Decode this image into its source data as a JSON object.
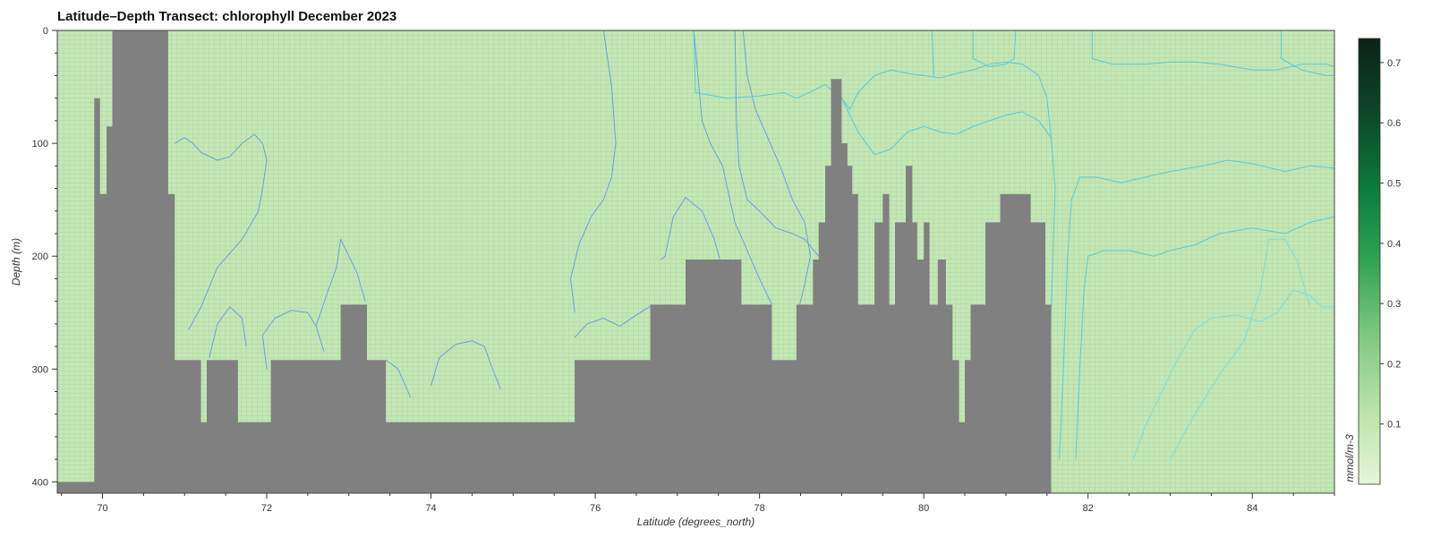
{
  "chart_data": {
    "type": "heatmap",
    "title": "Latitude–Depth Transect: chlorophyll December 2023",
    "xlabel": "Latitude (degrees_north)",
    "ylabel": "Depth (m)",
    "colorbar_label": "mmol/m-3",
    "xlim": [
      69.45,
      85.0
    ],
    "ylim": [
      410,
      0
    ],
    "x_ticks": [
      70,
      72,
      74,
      76,
      78,
      80,
      82,
      84
    ],
    "y_ticks": [
      0,
      100,
      200,
      300,
      400
    ],
    "colorbar_range": [
      0,
      0.74
    ],
    "colorbar_ticks": [
      0.1,
      0.2,
      0.3,
      0.4,
      0.5,
      0.6,
      0.7
    ],
    "colorbar_colors": [
      "#e6f6d8",
      "#b9e3a8",
      "#7fc97f",
      "#31a354",
      "#0b7a3b",
      "#0c4726",
      "#0b2218"
    ],
    "field_color": "#c3e8b5",
    "land_color": "#808080",
    "land_mask": [
      [
        69.45,
        400
      ],
      [
        69.9,
        400
      ],
      [
        69.9,
        60
      ],
      [
        69.97,
        60
      ],
      [
        69.97,
        145
      ],
      [
        70.05,
        145
      ],
      [
        70.05,
        85
      ],
      [
        70.12,
        85
      ],
      [
        70.12,
        0
      ],
      [
        70.8,
        0
      ],
      [
        70.8,
        145
      ],
      [
        70.88,
        145
      ],
      [
        70.88,
        292
      ],
      [
        71.2,
        292
      ],
      [
        71.2,
        347
      ],
      [
        71.27,
        347
      ],
      [
        71.27,
        292
      ],
      [
        71.65,
        292
      ],
      [
        71.65,
        347
      ],
      [
        72.05,
        347
      ],
      [
        72.05,
        292
      ],
      [
        72.9,
        292
      ],
      [
        72.9,
        243
      ],
      [
        73.22,
        243
      ],
      [
        73.22,
        292
      ],
      [
        73.45,
        292
      ],
      [
        73.45,
        347
      ],
      [
        75.75,
        347
      ],
      [
        75.75,
        292
      ],
      [
        76.67,
        292
      ],
      [
        76.67,
        243
      ],
      [
        77.1,
        243
      ],
      [
        77.1,
        203
      ],
      [
        77.78,
        203
      ],
      [
        77.78,
        243
      ],
      [
        78.15,
        243
      ],
      [
        78.15,
        292
      ],
      [
        78.45,
        292
      ],
      [
        78.45,
        243
      ],
      [
        78.65,
        243
      ],
      [
        78.65,
        203
      ],
      [
        78.72,
        203
      ],
      [
        78.72,
        170
      ],
      [
        78.8,
        170
      ],
      [
        78.8,
        120
      ],
      [
        78.87,
        120
      ],
      [
        78.87,
        43
      ],
      [
        79.0,
        43
      ],
      [
        79.0,
        100
      ],
      [
        79.07,
        100
      ],
      [
        79.07,
        120
      ],
      [
        79.13,
        120
      ],
      [
        79.13,
        145
      ],
      [
        79.2,
        145
      ],
      [
        79.2,
        243
      ],
      [
        79.4,
        243
      ],
      [
        79.4,
        170
      ],
      [
        79.5,
        170
      ],
      [
        79.5,
        145
      ],
      [
        79.58,
        145
      ],
      [
        79.58,
        243
      ],
      [
        79.65,
        243
      ],
      [
        79.65,
        170
      ],
      [
        79.78,
        170
      ],
      [
        79.78,
        120
      ],
      [
        79.86,
        120
      ],
      [
        79.86,
        170
      ],
      [
        79.92,
        170
      ],
      [
        79.92,
        203
      ],
      [
        80.0,
        203
      ],
      [
        80.0,
        170
      ],
      [
        80.07,
        170
      ],
      [
        80.07,
        243
      ],
      [
        80.17,
        243
      ],
      [
        80.17,
        203
      ],
      [
        80.27,
        203
      ],
      [
        80.27,
        243
      ],
      [
        80.35,
        243
      ],
      [
        80.35,
        292
      ],
      [
        80.43,
        292
      ],
      [
        80.43,
        347
      ],
      [
        80.5,
        347
      ],
      [
        80.5,
        292
      ],
      [
        80.57,
        292
      ],
      [
        80.57,
        243
      ],
      [
        80.75,
        243
      ],
      [
        80.75,
        170
      ],
      [
        80.93,
        170
      ],
      [
        80.93,
        145
      ],
      [
        81.3,
        145
      ],
      [
        81.3,
        170
      ],
      [
        81.48,
        170
      ],
      [
        81.48,
        243
      ],
      [
        81.55,
        243
      ],
      [
        81.55,
        410
      ],
      [
        69.45,
        410
      ]
    ],
    "contours": [
      {
        "color": "#6a9ee0",
        "points": [
          [
            70.88,
            100
          ],
          [
            71.0,
            95
          ],
          [
            71.1,
            100
          ],
          [
            71.2,
            108
          ],
          [
            71.4,
            115
          ],
          [
            71.55,
            112
          ],
          [
            71.7,
            100
          ],
          [
            71.85,
            92
          ],
          [
            71.95,
            100
          ],
          [
            72.0,
            115
          ],
          [
            71.95,
            140
          ],
          [
            71.9,
            160
          ],
          [
            71.7,
            185
          ],
          [
            71.4,
            210
          ],
          [
            71.2,
            245
          ],
          [
            71.05,
            265
          ]
        ]
      },
      {
        "color": "#6a9ee0",
        "points": [
          [
            71.3,
            290
          ],
          [
            71.4,
            260
          ],
          [
            71.55,
            245
          ],
          [
            71.7,
            255
          ],
          [
            71.75,
            280
          ]
        ]
      },
      {
        "color": "#6a9ee0",
        "points": [
          [
            72.0,
            300
          ],
          [
            71.95,
            270
          ],
          [
            72.1,
            255
          ],
          [
            72.3,
            248
          ],
          [
            72.5,
            250
          ],
          [
            72.6,
            262
          ],
          [
            72.7,
            285
          ]
        ]
      },
      {
        "color": "#6a9ee0",
        "points": [
          [
            72.6,
            262
          ],
          [
            72.75,
            230
          ],
          [
            72.85,
            210
          ],
          [
            72.9,
            185
          ],
          [
            73.0,
            200
          ],
          [
            73.1,
            215
          ],
          [
            73.2,
            240
          ]
        ]
      },
      {
        "color": "#6a9ee0",
        "points": [
          [
            73.45,
            292
          ],
          [
            73.6,
            300
          ],
          [
            73.75,
            325
          ]
        ]
      },
      {
        "color": "#6a9ee0",
        "points": [
          [
            74.0,
            315
          ],
          [
            74.1,
            290
          ],
          [
            74.3,
            278
          ],
          [
            74.5,
            275
          ],
          [
            74.65,
            280
          ],
          [
            74.75,
            300
          ],
          [
            74.85,
            318
          ]
        ]
      },
      {
        "color": "#6a9ee0",
        "points": [
          [
            75.75,
            272
          ],
          [
            75.9,
            260
          ],
          [
            76.1,
            255
          ],
          [
            76.3,
            262
          ],
          [
            76.5,
            252
          ],
          [
            76.7,
            243
          ]
        ]
      },
      {
        "color": "#6a9ee0",
        "points": [
          [
            75.75,
            250
          ],
          [
            75.7,
            220
          ],
          [
            75.8,
            190
          ],
          [
            75.95,
            165
          ],
          [
            76.1,
            150
          ],
          [
            76.2,
            130
          ],
          [
            76.25,
            100
          ],
          [
            76.2,
            50
          ],
          [
            76.1,
            0
          ]
        ]
      },
      {
        "color": "#6a9ee0",
        "points": [
          [
            77.78,
            243
          ],
          [
            77.6,
            225
          ],
          [
            77.45,
            185
          ],
          [
            77.3,
            160
          ],
          [
            77.1,
            148
          ],
          [
            76.95,
            165
          ],
          [
            76.85,
            200
          ],
          [
            76.8,
            203
          ]
        ]
      },
      {
        "color": "#6a9ee0",
        "points": [
          [
            78.15,
            243
          ],
          [
            78.0,
            220
          ],
          [
            77.85,
            195
          ],
          [
            77.7,
            170
          ],
          [
            77.55,
            120
          ],
          [
            77.4,
            100
          ],
          [
            77.3,
            80
          ],
          [
            77.25,
            40
          ],
          [
            77.2,
            0
          ]
        ]
      },
      {
        "color": "#6a9ee0",
        "points": [
          [
            78.45,
            255
          ],
          [
            78.55,
            225
          ],
          [
            78.62,
            200
          ],
          [
            78.55,
            170
          ],
          [
            78.4,
            150
          ],
          [
            78.25,
            120
          ],
          [
            78.1,
            95
          ],
          [
            77.95,
            70
          ],
          [
            77.85,
            40
          ],
          [
            77.8,
            0
          ]
        ]
      },
      {
        "color": "#6a9ee0",
        "points": [
          [
            78.72,
            200
          ],
          [
            78.55,
            185
          ],
          [
            78.4,
            180
          ],
          [
            78.2,
            175
          ],
          [
            78.0,
            160
          ],
          [
            77.85,
            150
          ],
          [
            77.75,
            120
          ],
          [
            77.72,
            80
          ],
          [
            77.7,
            0
          ]
        ]
      },
      {
        "color": "#5cc8d8",
        "points": [
          [
            78.45,
            60
          ],
          [
            78.6,
            55
          ],
          [
            78.8,
            48
          ],
          [
            79.0,
            60
          ],
          [
            79.2,
            90
          ],
          [
            79.4,
            110
          ],
          [
            79.6,
            105
          ],
          [
            79.8,
            90
          ],
          [
            80.0,
            85
          ],
          [
            80.2,
            90
          ],
          [
            80.4,
            92
          ],
          [
            80.6,
            85
          ],
          [
            80.8,
            80
          ],
          [
            81.0,
            75
          ],
          [
            81.2,
            72
          ],
          [
            81.4,
            80
          ],
          [
            81.55,
            95
          ]
        ]
      },
      {
        "color": "#5cc8d8",
        "points": [
          [
            79.0,
            60
          ],
          [
            79.1,
            70
          ],
          [
            79.2,
            55
          ],
          [
            79.4,
            40
          ],
          [
            79.6,
            35
          ],
          [
            79.8,
            38
          ],
          [
            80.0,
            40
          ],
          [
            80.2,
            42
          ],
          [
            80.4,
            38
          ],
          [
            80.6,
            35
          ],
          [
            80.8,
            30
          ],
          [
            81.0,
            28
          ],
          [
            81.2,
            30
          ],
          [
            81.4,
            40
          ],
          [
            81.5,
            60
          ],
          [
            81.55,
            95
          ],
          [
            81.6,
            140
          ],
          [
            81.55,
            250
          ],
          [
            81.5,
            380
          ]
        ]
      },
      {
        "color": "#5cc8d8",
        "points": [
          [
            81.65,
            380
          ],
          [
            81.7,
            300
          ],
          [
            81.75,
            200
          ],
          [
            81.8,
            150
          ],
          [
            81.9,
            130
          ],
          [
            82.1,
            130
          ],
          [
            82.4,
            135
          ],
          [
            82.7,
            130
          ],
          [
            83.0,
            125
          ],
          [
            83.4,
            120
          ],
          [
            83.7,
            115
          ],
          [
            84.0,
            118
          ],
          [
            84.4,
            125
          ],
          [
            84.7,
            120
          ],
          [
            85.0,
            122
          ]
        ]
      },
      {
        "color": "#5cc8d8",
        "points": [
          [
            81.85,
            380
          ],
          [
            81.9,
            300
          ],
          [
            81.95,
            230
          ],
          [
            82.0,
            200
          ],
          [
            82.2,
            195
          ],
          [
            82.5,
            195
          ],
          [
            82.8,
            200
          ],
          [
            83.0,
            195
          ],
          [
            83.3,
            190
          ],
          [
            83.6,
            180
          ],
          [
            84.0,
            175
          ],
          [
            84.4,
            180
          ],
          [
            84.7,
            170
          ],
          [
            85.0,
            165
          ]
        ]
      },
      {
        "color": "#7fdcd8",
        "points": [
          [
            82.55,
            380
          ],
          [
            82.7,
            350
          ],
          [
            82.9,
            320
          ],
          [
            83.1,
            290
          ],
          [
            83.3,
            265
          ],
          [
            83.5,
            255
          ],
          [
            83.8,
            252
          ],
          [
            84.1,
            258
          ],
          [
            84.3,
            250
          ],
          [
            84.5,
            230
          ],
          [
            84.7,
            235
          ],
          [
            84.85,
            245
          ],
          [
            85.0,
            245
          ]
        ]
      },
      {
        "color": "#7fdcd8",
        "points": [
          [
            83.0,
            380
          ],
          [
            83.3,
            340
          ],
          [
            83.6,
            305
          ],
          [
            83.9,
            275
          ],
          [
            84.1,
            230
          ],
          [
            84.2,
            185
          ],
          [
            84.4,
            185
          ],
          [
            84.55,
            205
          ],
          [
            84.7,
            245
          ]
        ]
      },
      {
        "color": "#5cc8d8",
        "points": [
          [
            82.05,
            0
          ],
          [
            82.05,
            25
          ],
          [
            82.3,
            30
          ],
          [
            82.7,
            30
          ],
          [
            83.0,
            28
          ],
          [
            83.3,
            28
          ],
          [
            83.6,
            30
          ],
          [
            84.0,
            35
          ],
          [
            84.3,
            35
          ],
          [
            84.6,
            30
          ],
          [
            84.9,
            30
          ],
          [
            85.0,
            32
          ]
        ]
      },
      {
        "color": "#5cc8d8",
        "points": [
          [
            84.35,
            0
          ],
          [
            84.35,
            25
          ],
          [
            84.6,
            35
          ],
          [
            84.9,
            40
          ],
          [
            85.0,
            40
          ]
        ]
      },
      {
        "color": "#5cc8d8",
        "points": [
          [
            77.2,
            0
          ],
          [
            77.22,
            55
          ],
          [
            77.6,
            60
          ],
          [
            78.0,
            58
          ],
          [
            78.3,
            55
          ],
          [
            78.45,
            60
          ]
        ]
      },
      {
        "color": "#5cc8d8",
        "points": [
          [
            80.1,
            0
          ],
          [
            80.12,
            40
          ]
        ]
      },
      {
        "color": "#5cc8d8",
        "points": [
          [
            80.6,
            0
          ],
          [
            80.6,
            25
          ],
          [
            80.8,
            32
          ],
          [
            81.0,
            30
          ],
          [
            81.1,
            25
          ],
          [
            81.12,
            0
          ]
        ]
      }
    ]
  }
}
